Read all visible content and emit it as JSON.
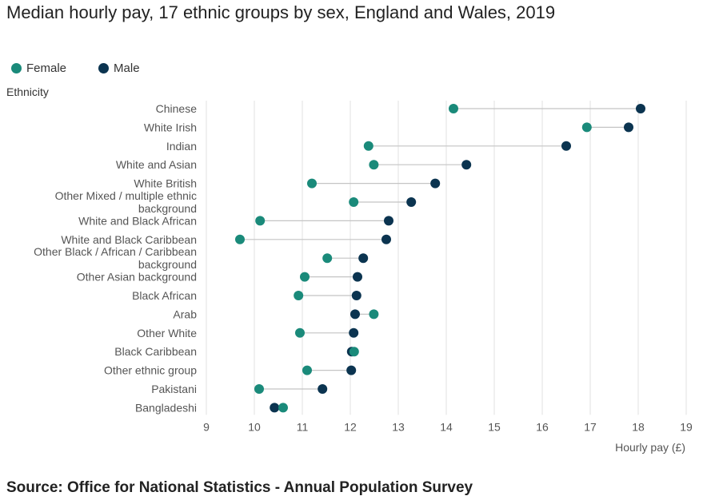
{
  "title": "Median hourly pay, 17 ethnic groups by sex, England and Wales, 2019",
  "source": "Source: Office for National Statistics - Annual Population Survey",
  "colors": {
    "female": "#1a8a7a",
    "male": "#0b3450",
    "connector": "#c4c4c4",
    "grid": "#e2e2e2"
  },
  "chart_data": {
    "type": "dumbbell",
    "ylabel": "Ethnicity",
    "xlabel": "Hourly pay (£)",
    "xlim": [
      9,
      19
    ],
    "xticks": [
      9,
      10,
      11,
      12,
      13,
      14,
      15,
      16,
      17,
      18,
      19
    ],
    "grid": "vertical",
    "legend": "top-left",
    "categories": [
      [
        "Chinese"
      ],
      [
        "White Irish"
      ],
      [
        "Indian"
      ],
      [
        "White and Asian"
      ],
      [
        "White British"
      ],
      [
        "Other Mixed / multiple ethnic",
        "background"
      ],
      [
        "White and Black African"
      ],
      [
        "White and Black Caribbean"
      ],
      [
        "Other Black / African / Caribbean",
        "background"
      ],
      [
        "Other Asian background"
      ],
      [
        "Black African"
      ],
      [
        "Arab"
      ],
      [
        "Other White"
      ],
      [
        "Black Caribbean"
      ],
      [
        "Other ethnic group"
      ],
      [
        "Pakistani"
      ],
      [
        "Bangladeshi"
      ]
    ],
    "series": [
      {
        "name": "Female",
        "values": [
          14.15,
          16.93,
          12.38,
          12.49,
          11.2,
          12.07,
          10.12,
          9.7,
          11.52,
          11.05,
          10.92,
          12.49,
          10.95,
          12.08,
          11.1,
          10.1,
          10.6
        ]
      },
      {
        "name": "Male",
        "values": [
          18.05,
          17.8,
          16.5,
          14.42,
          13.77,
          13.27,
          12.8,
          12.75,
          12.27,
          12.15,
          12.13,
          12.1,
          12.07,
          12.03,
          12.02,
          11.42,
          10.42
        ]
      }
    ]
  }
}
